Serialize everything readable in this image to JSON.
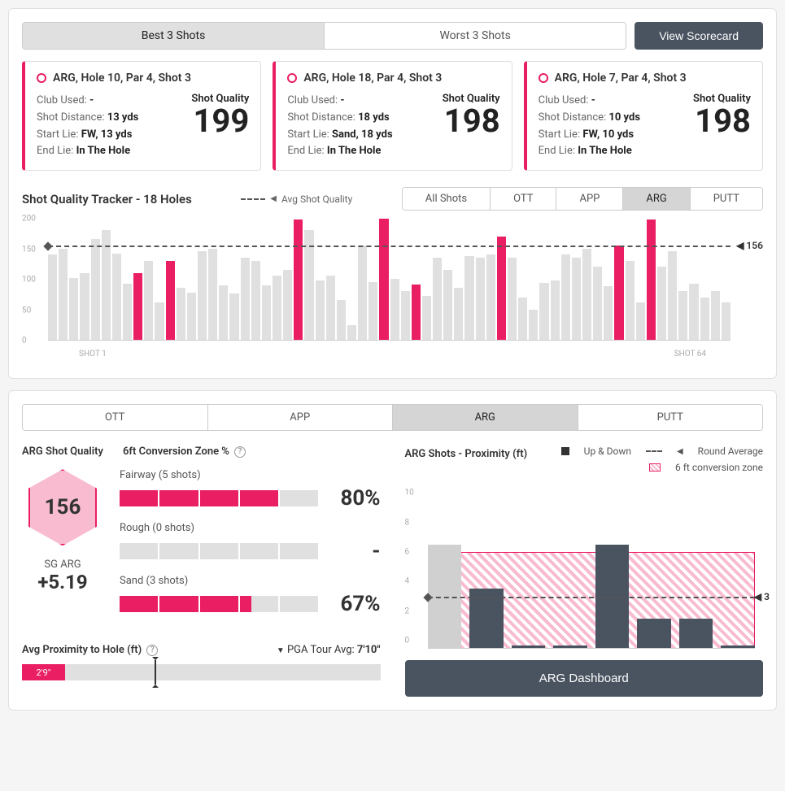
{
  "topTabs": {
    "best": "Best 3 Shots",
    "worst": "Worst 3 Shots",
    "scorecard": "View Scorecard"
  },
  "shots": [
    {
      "title": "ARG, Hole 10, Par 4, Shot 3",
      "club": "-",
      "dist": "13 yds",
      "start": "FW, 13 yds",
      "end": "In The Hole",
      "sqLbl": "Shot Quality",
      "sq": "199"
    },
    {
      "title": "ARG, Hole 18, Par 4, Shot 3",
      "club": "-",
      "dist": "18 yds",
      "start": "Sand, 18 yds",
      "end": "In The Hole",
      "sqLbl": "Shot Quality",
      "sq": "198"
    },
    {
      "title": "ARG, Hole 7, Par 4, Shot 3",
      "club": "-",
      "dist": "10 yds",
      "start": "FW, 10 yds",
      "end": "In The Hole",
      "sqLbl": "Shot Quality",
      "sq": "198"
    }
  ],
  "labels": {
    "clubUsed": "Club Used: ",
    "shotDist": "Shot Distance: ",
    "startLie": "Start Lie: ",
    "endLie": "End Lie: "
  },
  "tracker": {
    "title": "Shot Quality Tracker - 18 Holes",
    "avgLbl": "Avg Shot Quality",
    "tabs": [
      "All Shots",
      "OTT",
      "APP",
      "ARG",
      "PUTT"
    ],
    "active": 3,
    "ymax": 200,
    "yticks": [
      0,
      50,
      100,
      150,
      200
    ],
    "avg": 156,
    "xfirst": "SHOT 1",
    "xlast": "SHOT 64",
    "bars": [
      {
        "v": 140
      },
      {
        "v": 150
      },
      {
        "v": 102
      },
      {
        "v": 110
      },
      {
        "v": 165
      },
      {
        "v": 180
      },
      {
        "v": 142
      },
      {
        "v": 92
      },
      {
        "v": 110,
        "h": 1
      },
      {
        "v": 130
      },
      {
        "v": 62
      },
      {
        "v": 130,
        "h": 1
      },
      {
        "v": 85
      },
      {
        "v": 78
      },
      {
        "v": 145
      },
      {
        "v": 150
      },
      {
        "v": 90
      },
      {
        "v": 76
      },
      {
        "v": 135
      },
      {
        "v": 130
      },
      {
        "v": 90
      },
      {
        "v": 105
      },
      {
        "v": 115
      },
      {
        "v": 198,
        "h": 1
      },
      {
        "v": 180
      },
      {
        "v": 98
      },
      {
        "v": 105
      },
      {
        "v": 65
      },
      {
        "v": 24
      },
      {
        "v": 155
      },
      {
        "v": 95
      },
      {
        "v": 199,
        "h": 1
      },
      {
        "v": 100
      },
      {
        "v": 80
      },
      {
        "v": 91,
        "h": 1
      },
      {
        "v": 72
      },
      {
        "v": 135
      },
      {
        "v": 115
      },
      {
        "v": 85
      },
      {
        "v": 138
      },
      {
        "v": 135
      },
      {
        "v": 140
      },
      {
        "v": 170,
        "h": 1
      },
      {
        "v": 135
      },
      {
        "v": 70
      },
      {
        "v": 50
      },
      {
        "v": 93
      },
      {
        "v": 98
      },
      {
        "v": 140
      },
      {
        "v": 135
      },
      {
        "v": 150
      },
      {
        "v": 120
      },
      {
        "v": 88
      },
      {
        "v": 155,
        "h": 1
      },
      {
        "v": 130
      },
      {
        "v": 62
      },
      {
        "v": 198,
        "h": 1
      },
      {
        "v": 120
      },
      {
        "v": 145
      },
      {
        "v": 80
      },
      {
        "v": 92
      },
      {
        "v": 70
      },
      {
        "v": 80
      },
      {
        "v": 62
      }
    ]
  },
  "bigTabs": [
    "OTT",
    "APP",
    "ARG",
    "PUTT"
  ],
  "bigActive": 2,
  "arg": {
    "sqTitle": "ARG Shot Quality",
    "convTitle": "6ft Conversion Zone %",
    "hex": "156",
    "sgLbl": "SG ARG",
    "sgVal": "+5.19",
    "conv": [
      {
        "lbl": "Fairway (5 shots)",
        "fill": 4,
        "pct": "80%"
      },
      {
        "lbl": "Rough (0 shots)",
        "fill": 0,
        "pct": "-"
      },
      {
        "lbl": "Sand (3 shots)",
        "fill": 3.3,
        "pct": "67%"
      }
    ],
    "proxLbl": "Avg Proximity to Hole (ft)",
    "pgaLbl": "PGA Tour Avg: ",
    "pgaVal": "7'10\"",
    "proxVal": "2'9\"",
    "proxFill": 12,
    "proxMarker": 37
  },
  "proxChart": {
    "title": "ARG Shots - Proximity (ft)",
    "leg1": "Up & Down",
    "leg2": "Round Average",
    "leg3": "6 ft conversion zone",
    "ymax": 11,
    "yticks": [
      0,
      2,
      4,
      6,
      8,
      10
    ],
    "zone": 6,
    "avg": 3,
    "bars": [
      {
        "v": 7,
        "miss": 1
      },
      {
        "v": 4
      },
      {
        "v": 0.2
      },
      {
        "v": 0.2
      },
      {
        "v": 7
      },
      {
        "v": 2
      },
      {
        "v": 2
      },
      {
        "v": 0.2
      }
    ],
    "btn": "ARG Dashboard"
  }
}
